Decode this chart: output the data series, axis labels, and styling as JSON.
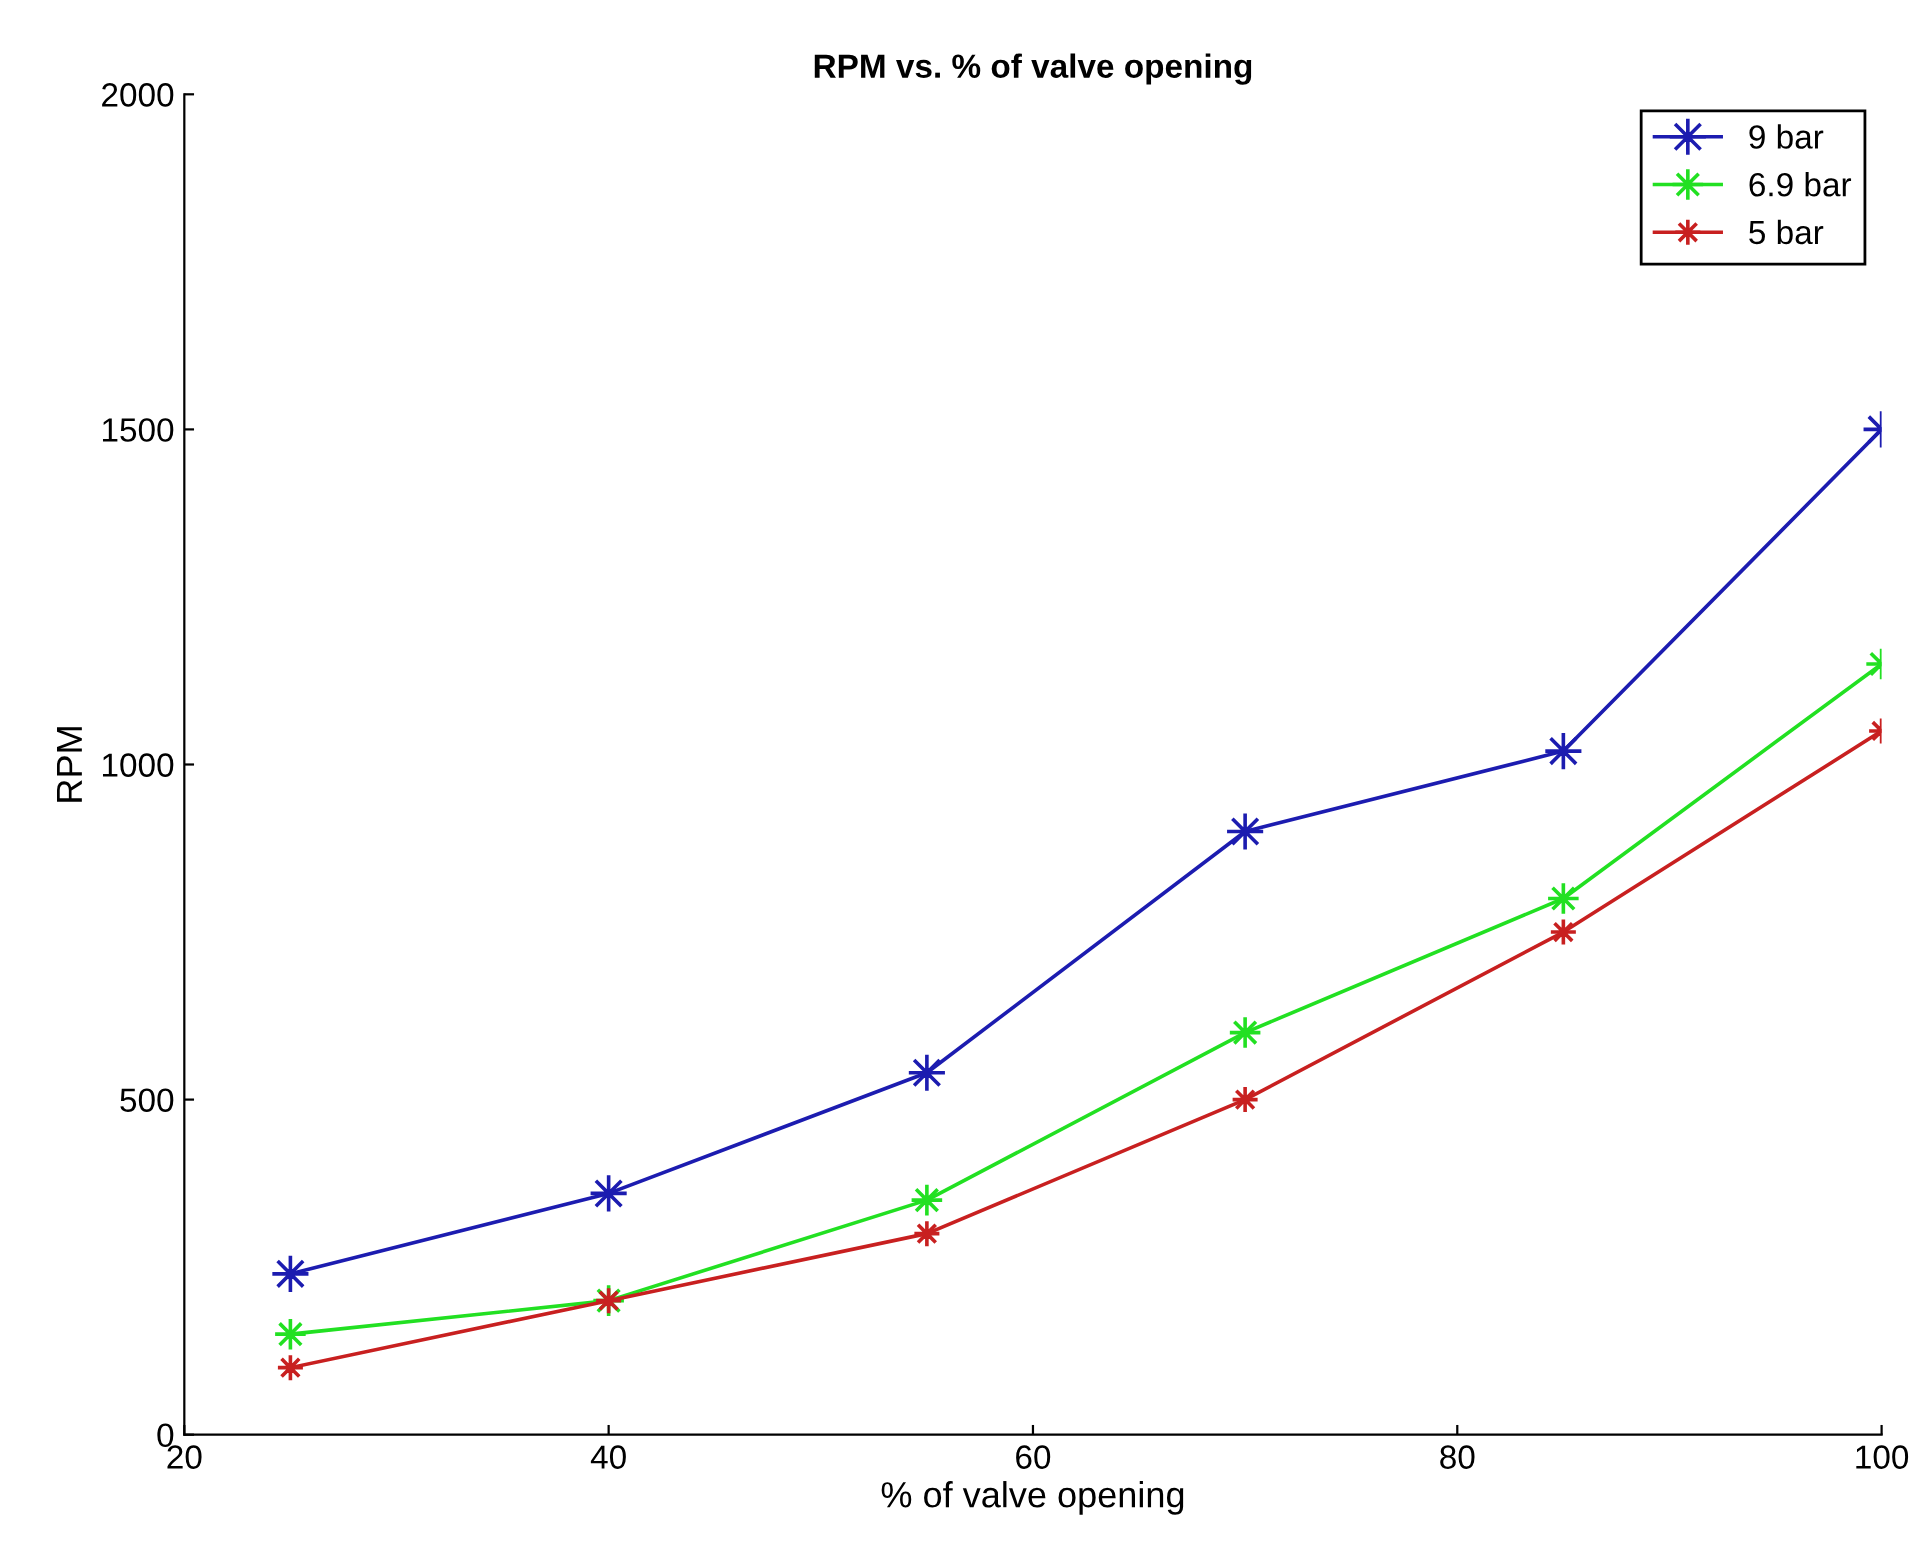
{
  "chart_data": {
    "type": "line",
    "title": "RPM vs. % of valve opening",
    "xlabel": "% of valve opening",
    "ylabel": "RPM",
    "x": [
      25,
      40,
      55,
      70,
      85,
      100
    ],
    "series": [
      {
        "name": "9 bar",
        "color": "#1c1cb0",
        "values": [
          240,
          360,
          540,
          900,
          1020,
          1500
        ]
      },
      {
        "name": "6.9 bar",
        "color": "#22e022",
        "values": [
          150,
          200,
          350,
          600,
          800,
          1150
        ]
      },
      {
        "name": "5 bar",
        "color": "#c82020",
        "values": [
          100,
          200,
          300,
          500,
          750,
          1050
        ]
      }
    ],
    "xlim": [
      20,
      100
    ],
    "xticks": [
      20,
      40,
      60,
      80,
      100
    ],
    "ylim": [
      0,
      2000
    ],
    "yticks": [
      0,
      500,
      1000,
      1500,
      2000
    ],
    "grid": false,
    "legend": "top right",
    "marker": "star",
    "line_style": "solid"
  }
}
